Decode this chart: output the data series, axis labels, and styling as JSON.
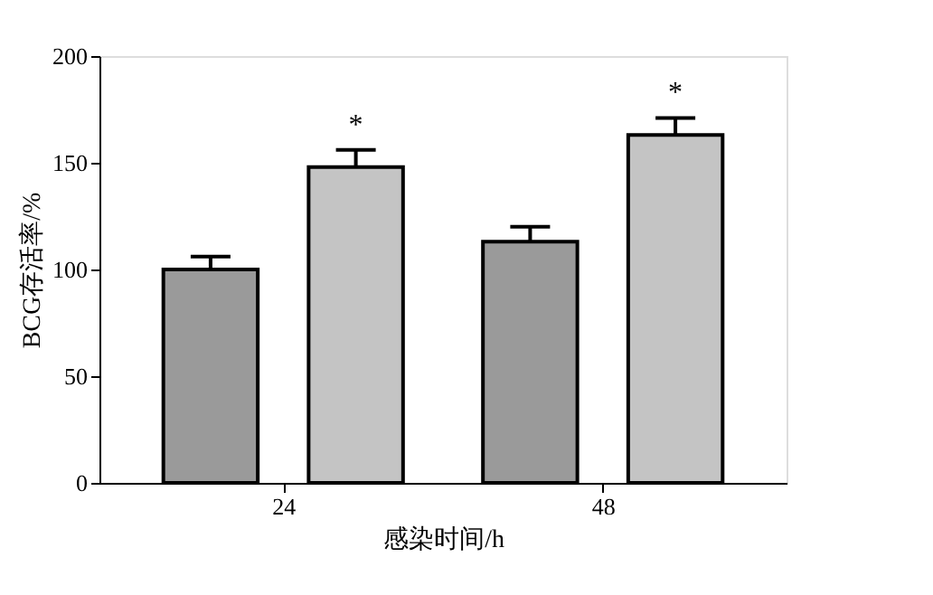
{
  "chart_data": {
    "type": "bar",
    "xlabel": "感染时间/h",
    "ylabel": "BCG存活率/%",
    "categories": [
      "24",
      "48"
    ],
    "series": [
      {
        "color": "#9a9a9a",
        "values": [
          100,
          113
        ],
        "errors": [
          6,
          7
        ]
      },
      {
        "color": "#c4c4c4",
        "values": [
          148,
          163
        ],
        "errors": [
          8,
          8
        ]
      }
    ],
    "ylim": [
      0,
      200
    ],
    "yticks": [
      0,
      50,
      100,
      150,
      200
    ],
    "grid": false,
    "annotations": [
      "*",
      "*"
    ]
  }
}
